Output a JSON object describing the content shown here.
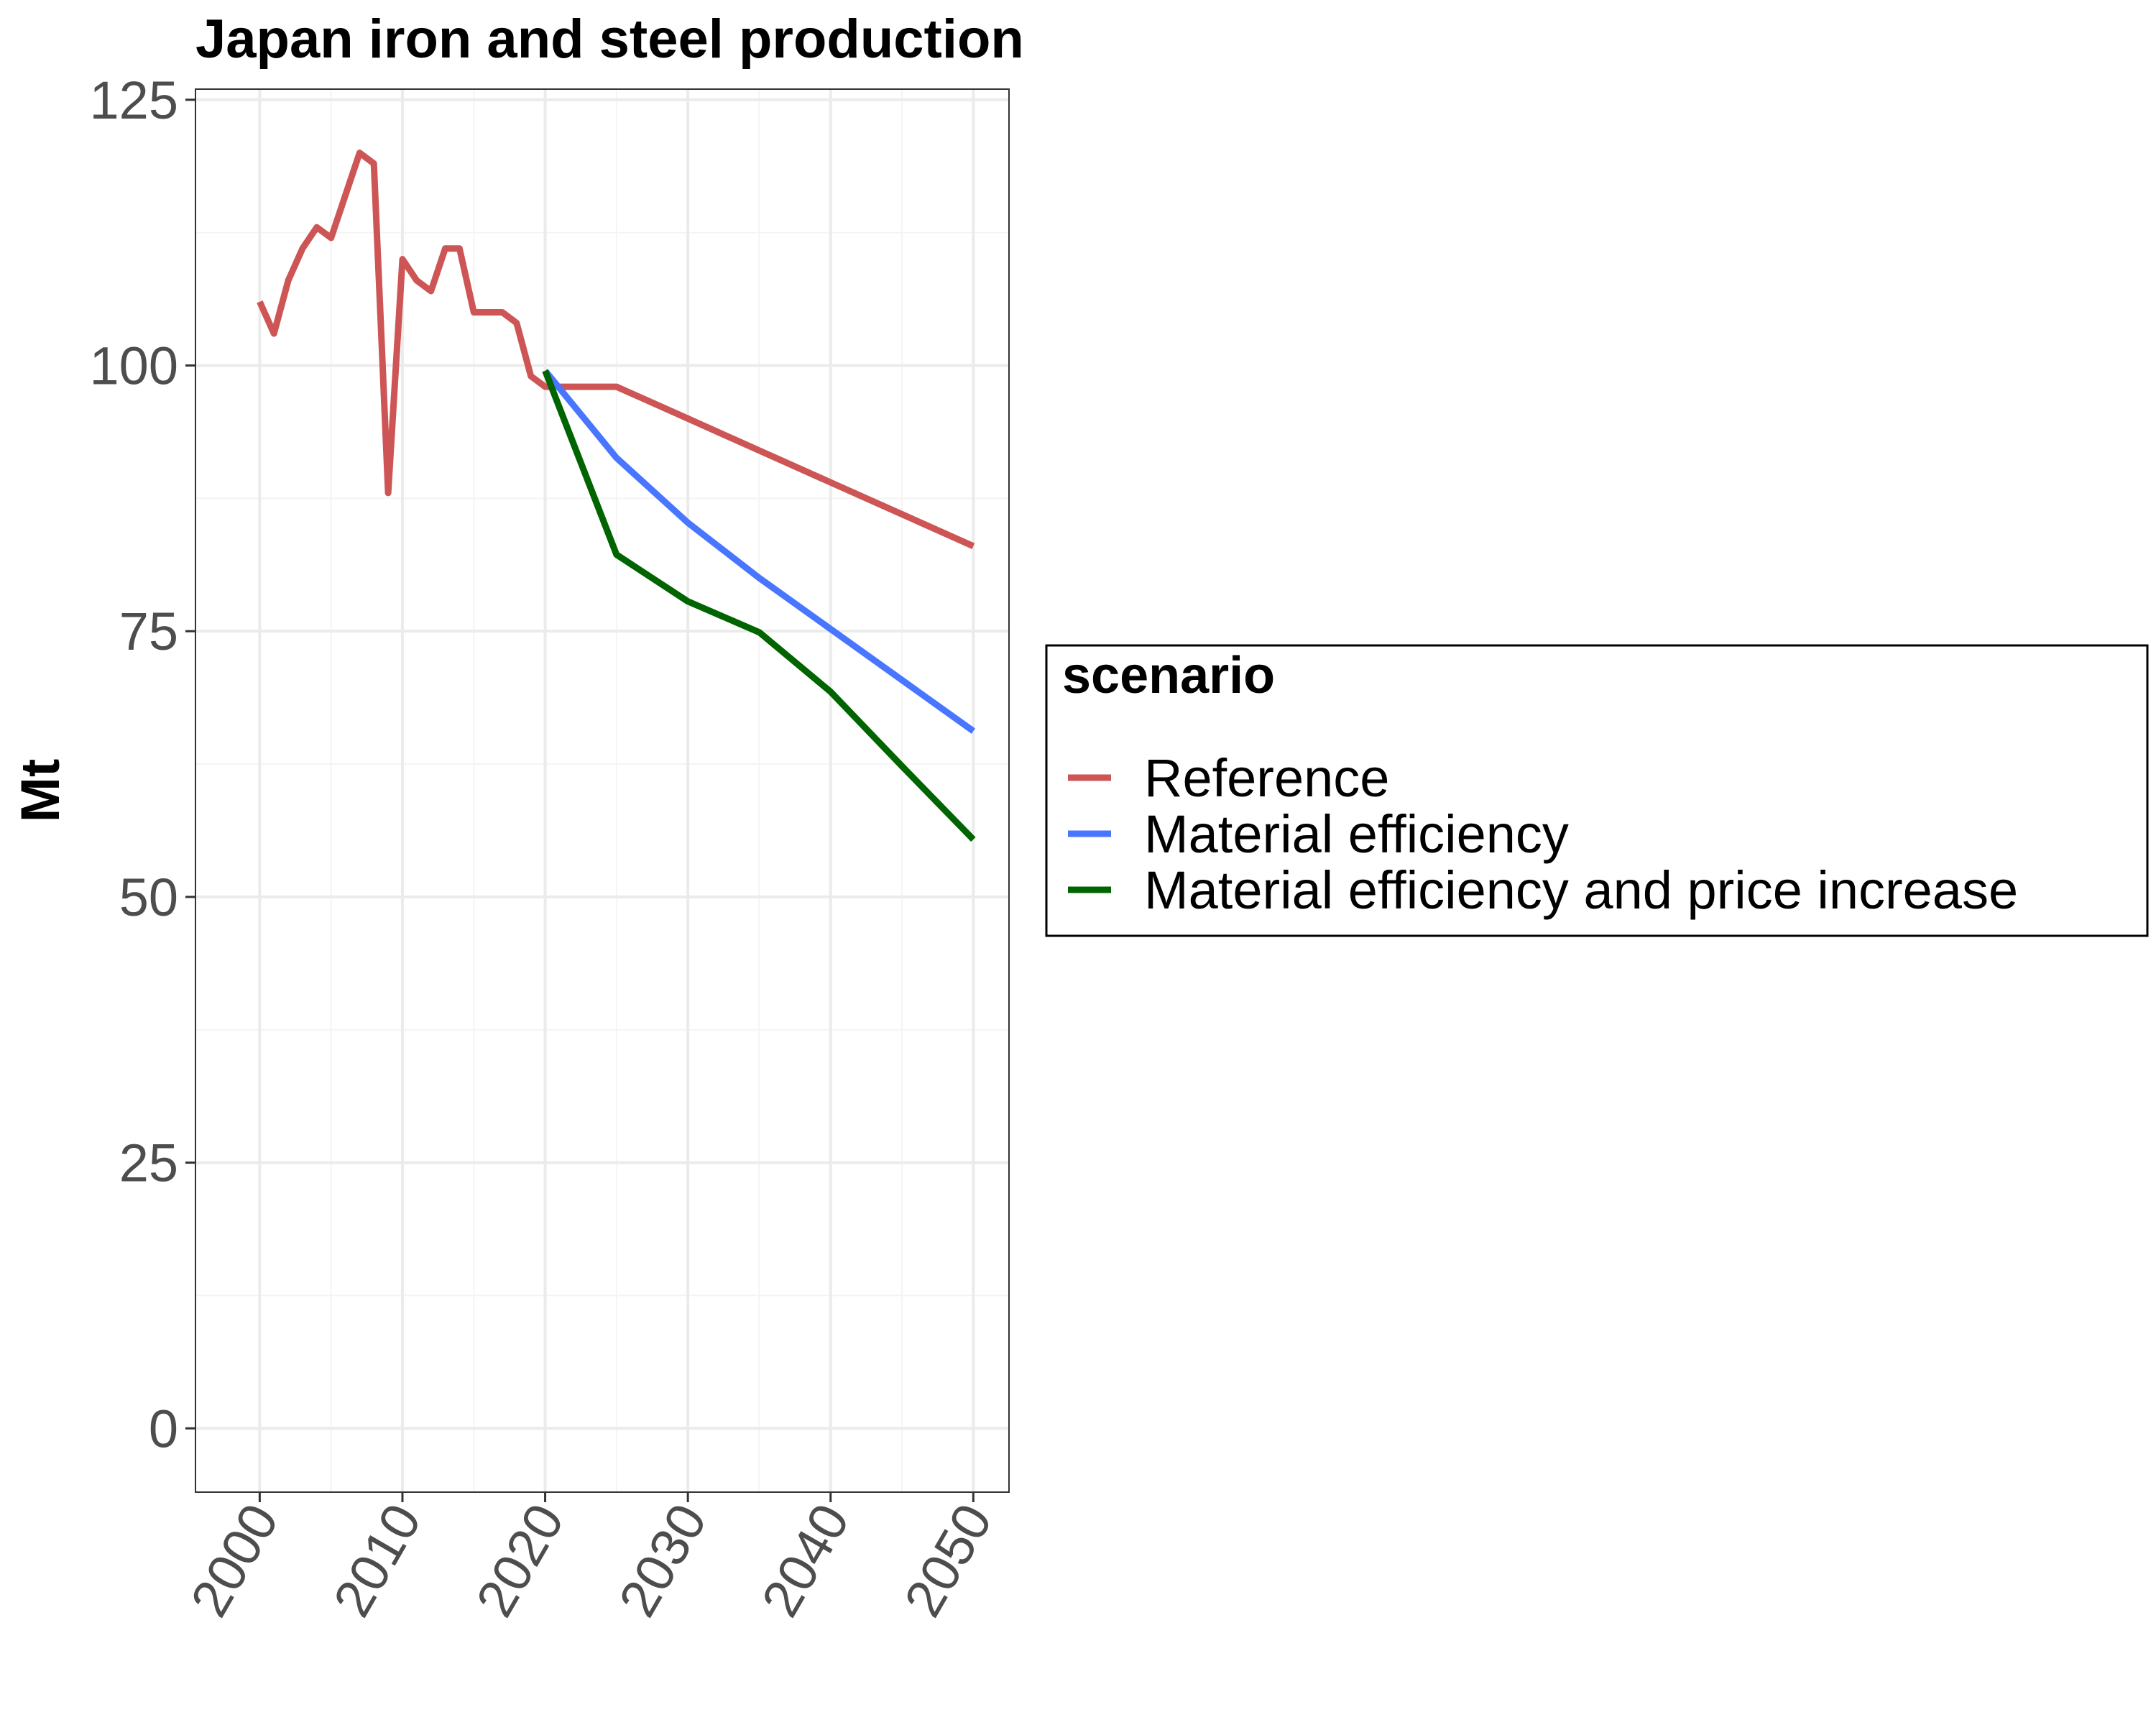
{
  "chart_data": {
    "type": "line",
    "title": "Japan  iron and steel production",
    "xlabel": "",
    "ylabel": "Mt",
    "xlim": [
      1995.5,
      2052.5
    ],
    "ylim": [
      -6,
      126
    ],
    "x_ticks": [
      2000,
      2010,
      2020,
      2030,
      2040,
      2050
    ],
    "y_ticks": [
      0,
      25,
      50,
      75,
      100,
      125
    ],
    "grid": true,
    "legend": {
      "title": "scenario",
      "position": "right"
    },
    "series": [
      {
        "name": "Reference",
        "color": "#cd5555",
        "x": [
          2000,
          2001,
          2002,
          2003,
          2004,
          2005,
          2006,
          2007,
          2008,
          2009,
          2010,
          2011,
          2012,
          2013,
          2014,
          2015,
          2016,
          2017,
          2018,
          2019,
          2020,
          2025,
          2030,
          2035,
          2040,
          2045,
          2050
        ],
        "y": [
          106,
          103,
          108,
          111,
          113,
          112,
          116,
          120,
          119,
          88,
          110,
          108,
          107,
          111,
          111,
          105,
          105,
          105,
          104,
          99,
          98,
          98,
          95,
          92,
          89,
          86,
          83
        ]
      },
      {
        "name": "Material efficiency",
        "color": "#4876ff",
        "x": [
          2020,
          2025,
          2030,
          2035,
          2040,
          2045,
          2050
        ],
        "y": [
          99.5,
          91.3,
          85.2,
          80,
          75.2,
          70.4,
          65.6
        ]
      },
      {
        "name": "Material efficiency and price increase",
        "color": "#006400",
        "x": [
          2020,
          2025,
          2030,
          2035,
          2040,
          2045,
          2050
        ],
        "y": [
          99.5,
          82.2,
          77.8,
          74.9,
          69.3,
          62.3,
          55.4
        ]
      }
    ]
  }
}
